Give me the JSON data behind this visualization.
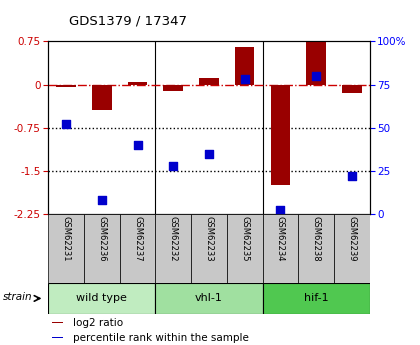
{
  "title": "GDS1379 / 17347",
  "samples": [
    "GSM62231",
    "GSM62236",
    "GSM62237",
    "GSM62232",
    "GSM62233",
    "GSM62235",
    "GSM62234",
    "GSM62238",
    "GSM62239"
  ],
  "log2_ratio": [
    -0.05,
    -0.45,
    0.05,
    -0.12,
    0.12,
    0.65,
    -1.75,
    0.75,
    -0.15
  ],
  "percentile_rank": [
    52,
    8,
    40,
    28,
    35,
    78,
    2,
    80,
    22
  ],
  "groups": [
    {
      "label": "wild type",
      "start": 0,
      "end": 3,
      "color": "#c0ecc0"
    },
    {
      "label": "vhl-1",
      "start": 3,
      "end": 6,
      "color": "#a0e0a0"
    },
    {
      "label": "hif-1",
      "start": 6,
      "end": 9,
      "color": "#50c850"
    }
  ],
  "ylim_left": [
    -2.25,
    0.75
  ],
  "ylim_right": [
    0,
    100
  ],
  "yticks_left": [
    0.75,
    0.0,
    -0.75,
    -1.5,
    -2.25
  ],
  "yticks_right": [
    100,
    75,
    50,
    25,
    0
  ],
  "bar_color": "#990000",
  "dot_color": "#0000cc",
  "hline_color": "#cc0000",
  "dotted_line_color": "#000000",
  "bar_width": 0.55,
  "dot_size": 28,
  "sample_box_color": "#c8c8c8",
  "legend_items": [
    {
      "label": "log2 ratio",
      "color": "#990000"
    },
    {
      "label": "percentile rank within the sample",
      "color": "#0000cc"
    }
  ]
}
